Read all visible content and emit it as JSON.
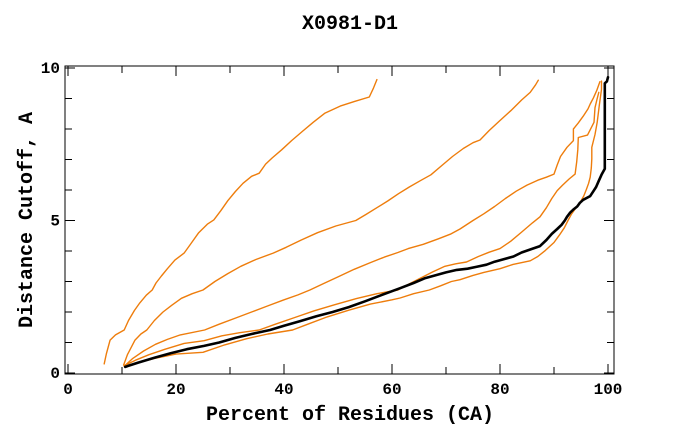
{
  "chart_data": {
    "type": "line",
    "title": "X0981-D1",
    "xlabel": "Percent of Residues (CA)",
    "ylabel": "Distance Cutoff, A",
    "xlim": [
      0,
      100
    ],
    "ylim": [
      0,
      10
    ],
    "x_tick_step": 10,
    "y_tick_step": 1,
    "x_ticks": [
      {
        "v": 0,
        "label": "0"
      },
      {
        "v": 20,
        "label": "20"
      },
      {
        "v": 40,
        "label": "40"
      },
      {
        "v": 60,
        "label": "60"
      },
      {
        "v": 80,
        "label": "80"
      },
      {
        "v": 100,
        "label": "100"
      }
    ],
    "y_ticks": [
      {
        "v": 0,
        "label": "0"
      },
      {
        "v": 5,
        "label": "5"
      },
      {
        "v": 10,
        "label": "10"
      }
    ],
    "grid": false,
    "legend": "none",
    "colors": {
      "model": "#ee7d0c",
      "reference": "#000000"
    },
    "series": [
      {
        "name": "model-1",
        "role": "model",
        "color": "#ee7d0c",
        "points": [
          [
            6.7,
            0.3
          ],
          [
            7.1,
            0.62
          ],
          [
            7.8,
            1.08
          ],
          [
            8.8,
            1.25
          ],
          [
            10.4,
            1.41
          ],
          [
            11.2,
            1.72
          ],
          [
            12.3,
            2.05
          ],
          [
            13.3,
            2.3
          ],
          [
            14.5,
            2.55
          ],
          [
            15.6,
            2.72
          ],
          [
            16.3,
            2.95
          ],
          [
            17.3,
            3.18
          ],
          [
            18.4,
            3.42
          ],
          [
            19.8,
            3.7
          ],
          [
            21.5,
            3.93
          ],
          [
            22.8,
            4.25
          ],
          [
            24.2,
            4.6
          ],
          [
            25.8,
            4.88
          ],
          [
            27.0,
            5.02
          ],
          [
            28.3,
            5.32
          ],
          [
            29.6,
            5.65
          ],
          [
            31.0,
            5.95
          ],
          [
            32.4,
            6.22
          ],
          [
            34.0,
            6.45
          ],
          [
            35.4,
            6.55
          ],
          [
            36.6,
            6.85
          ],
          [
            37.8,
            7.05
          ],
          [
            39.6,
            7.32
          ],
          [
            41.4,
            7.62
          ],
          [
            43.4,
            7.92
          ],
          [
            45.4,
            8.22
          ],
          [
            47.6,
            8.52
          ],
          [
            50.4,
            8.75
          ],
          [
            53.0,
            8.9
          ],
          [
            55.8,
            9.05
          ],
          [
            56.6,
            9.35
          ],
          [
            57.2,
            9.62
          ]
        ]
      },
      {
        "name": "model-2",
        "role": "model",
        "color": "#ee7d0c",
        "points": [
          [
            10.3,
            0.26
          ],
          [
            11.0,
            0.6
          ],
          [
            12.4,
            1.08
          ],
          [
            13.5,
            1.28
          ],
          [
            14.6,
            1.41
          ],
          [
            16.0,
            1.72
          ],
          [
            17.6,
            2.0
          ],
          [
            19.2,
            2.22
          ],
          [
            21.0,
            2.45
          ],
          [
            23.0,
            2.6
          ],
          [
            25.0,
            2.72
          ],
          [
            27.2,
            3.0
          ],
          [
            29.6,
            3.26
          ],
          [
            32.0,
            3.5
          ],
          [
            34.8,
            3.72
          ],
          [
            38.0,
            3.93
          ],
          [
            40.4,
            4.12
          ],
          [
            43.2,
            4.36
          ],
          [
            46.2,
            4.6
          ],
          [
            49.6,
            4.82
          ],
          [
            53.3,
            5.0
          ],
          [
            55.2,
            5.2
          ],
          [
            57.2,
            5.42
          ],
          [
            59.2,
            5.64
          ],
          [
            61.2,
            5.88
          ],
          [
            63.2,
            6.1
          ],
          [
            65.2,
            6.3
          ],
          [
            67.2,
            6.5
          ],
          [
            69.2,
            6.8
          ],
          [
            71.2,
            7.1
          ],
          [
            73.2,
            7.36
          ],
          [
            75.0,
            7.55
          ],
          [
            76.3,
            7.64
          ],
          [
            78.0,
            7.95
          ],
          [
            80.0,
            8.28
          ],
          [
            82.0,
            8.6
          ],
          [
            84.0,
            8.95
          ],
          [
            85.6,
            9.2
          ],
          [
            86.6,
            9.45
          ],
          [
            87.1,
            9.6
          ]
        ]
      },
      {
        "name": "model-3",
        "role": "model",
        "color": "#ee7d0c",
        "points": [
          [
            10.4,
            0.22
          ],
          [
            12.0,
            0.48
          ],
          [
            14.0,
            0.72
          ],
          [
            16.2,
            0.94
          ],
          [
            18.4,
            1.1
          ],
          [
            20.8,
            1.25
          ],
          [
            25.3,
            1.41
          ],
          [
            28.0,
            1.6
          ],
          [
            31.0,
            1.8
          ],
          [
            34.0,
            2.0
          ],
          [
            37.0,
            2.2
          ],
          [
            40.0,
            2.4
          ],
          [
            42.6,
            2.56
          ],
          [
            44.8,
            2.72
          ],
          [
            47.2,
            2.92
          ],
          [
            50.0,
            3.15
          ],
          [
            53.0,
            3.4
          ],
          [
            56.0,
            3.62
          ],
          [
            58.6,
            3.8
          ],
          [
            61.1,
            3.95
          ],
          [
            63.0,
            4.08
          ],
          [
            65.8,
            4.22
          ],
          [
            68.6,
            4.4
          ],
          [
            70.8,
            4.55
          ],
          [
            72.6,
            4.72
          ],
          [
            75.0,
            5.0
          ],
          [
            77.0,
            5.22
          ],
          [
            79.0,
            5.46
          ],
          [
            81.0,
            5.72
          ],
          [
            83.0,
            5.96
          ],
          [
            85.0,
            6.16
          ],
          [
            87.0,
            6.32
          ],
          [
            88.6,
            6.42
          ],
          [
            90.0,
            6.52
          ],
          [
            90.6,
            6.82
          ],
          [
            91.2,
            7.1
          ],
          [
            92.4,
            7.4
          ],
          [
            93.6,
            7.62
          ],
          [
            93.6,
            8.0
          ],
          [
            94.5,
            8.2
          ],
          [
            95.4,
            8.42
          ],
          [
            96.3,
            8.66
          ],
          [
            96.7,
            8.82
          ],
          [
            97.3,
            9.02
          ],
          [
            97.9,
            9.26
          ],
          [
            98.3,
            9.45
          ],
          [
            98.5,
            9.55
          ]
        ]
      },
      {
        "name": "model-4",
        "role": "model",
        "color": "#ee7d0c",
        "points": [
          [
            10.5,
            0.25
          ],
          [
            12.5,
            0.42
          ],
          [
            15.0,
            0.6
          ],
          [
            18.0,
            0.78
          ],
          [
            21.5,
            0.97
          ],
          [
            25.2,
            1.06
          ],
          [
            28.5,
            1.22
          ],
          [
            31.8,
            1.32
          ],
          [
            35.4,
            1.41
          ],
          [
            38.4,
            1.6
          ],
          [
            42.0,
            1.82
          ],
          [
            45.6,
            2.04
          ],
          [
            49.4,
            2.24
          ],
          [
            53.4,
            2.44
          ],
          [
            57.2,
            2.6
          ],
          [
            61.1,
            2.72
          ],
          [
            63.2,
            2.92
          ],
          [
            65.4,
            3.12
          ],
          [
            67.6,
            3.32
          ],
          [
            69.8,
            3.5
          ],
          [
            71.8,
            3.58
          ],
          [
            73.8,
            3.64
          ],
          [
            76.0,
            3.82
          ],
          [
            78.0,
            3.96
          ],
          [
            80.0,
            4.08
          ],
          [
            82.0,
            4.32
          ],
          [
            84.0,
            4.62
          ],
          [
            86.0,
            4.92
          ],
          [
            87.4,
            5.12
          ],
          [
            88.6,
            5.42
          ],
          [
            89.6,
            5.72
          ],
          [
            90.6,
            5.98
          ],
          [
            91.6,
            6.16
          ],
          [
            92.8,
            6.36
          ],
          [
            93.9,
            6.52
          ],
          [
            94.2,
            6.92
          ],
          [
            94.4,
            7.32
          ],
          [
            94.5,
            7.72
          ],
          [
            96.2,
            7.8
          ],
          [
            97.4,
            8.22
          ],
          [
            97.6,
            8.7
          ],
          [
            98.0,
            9.0
          ],
          [
            98.3,
            9.2
          ]
        ]
      },
      {
        "name": "model-5",
        "role": "model",
        "color": "#ee7d0c",
        "points": [
          [
            10.8,
            0.2
          ],
          [
            13.0,
            0.34
          ],
          [
            16.0,
            0.48
          ],
          [
            20.0,
            0.62
          ],
          [
            25.0,
            0.68
          ],
          [
            29.0,
            0.92
          ],
          [
            33.0,
            1.12
          ],
          [
            37.0,
            1.28
          ],
          [
            41.6,
            1.41
          ],
          [
            44.4,
            1.6
          ],
          [
            48.0,
            1.84
          ],
          [
            52.0,
            2.06
          ],
          [
            56.0,
            2.26
          ],
          [
            60.0,
            2.4
          ],
          [
            61.5,
            2.46
          ],
          [
            64.0,
            2.6
          ],
          [
            66.9,
            2.72
          ],
          [
            69.0,
            2.86
          ],
          [
            71.0,
            3.0
          ],
          [
            72.6,
            3.06
          ],
          [
            75.0,
            3.2
          ],
          [
            77.0,
            3.3
          ],
          [
            80.0,
            3.42
          ],
          [
            82.4,
            3.56
          ],
          [
            85.6,
            3.68
          ],
          [
            87.0,
            3.82
          ],
          [
            88.4,
            4.02
          ],
          [
            90.0,
            4.28
          ],
          [
            91.0,
            4.52
          ],
          [
            91.9,
            4.76
          ],
          [
            92.6,
            5.0
          ],
          [
            93.2,
            5.2
          ],
          [
            94.0,
            5.4
          ],
          [
            94.8,
            5.58
          ],
          [
            95.5,
            5.8
          ],
          [
            96.0,
            6.02
          ],
          [
            96.4,
            6.22
          ],
          [
            96.7,
            6.42
          ],
          [
            96.9,
            6.72
          ],
          [
            97.0,
            7.02
          ],
          [
            97.0,
            7.4
          ],
          [
            97.6,
            7.82
          ],
          [
            98.0,
            8.22
          ],
          [
            98.4,
            8.8
          ],
          [
            98.8,
            9.3
          ],
          [
            98.8,
            9.57
          ]
        ]
      },
      {
        "name": "reference",
        "role": "reference",
        "color": "#000000",
        "points": [
          [
            10.6,
            0.2
          ],
          [
            13.0,
            0.34
          ],
          [
            16.0,
            0.5
          ],
          [
            19.0,
            0.65
          ],
          [
            22.0,
            0.78
          ],
          [
            25.2,
            0.89
          ],
          [
            28.0,
            1.0
          ],
          [
            31.0,
            1.15
          ],
          [
            34.0,
            1.28
          ],
          [
            37.4,
            1.41
          ],
          [
            40.0,
            1.55
          ],
          [
            43.0,
            1.7
          ],
          [
            46.0,
            1.86
          ],
          [
            49.0,
            2.0
          ],
          [
            52.0,
            2.16
          ],
          [
            55.0,
            2.35
          ],
          [
            58.0,
            2.55
          ],
          [
            61.5,
            2.78
          ],
          [
            64.0,
            2.95
          ],
          [
            66.0,
            3.1
          ],
          [
            68.0,
            3.2
          ],
          [
            70.0,
            3.3
          ],
          [
            72.0,
            3.38
          ],
          [
            74.0,
            3.42
          ],
          [
            75.6,
            3.48
          ],
          [
            77.5,
            3.55
          ],
          [
            79.0,
            3.65
          ],
          [
            80.5,
            3.72
          ],
          [
            82.5,
            3.82
          ],
          [
            84.0,
            3.95
          ],
          [
            85.6,
            4.05
          ],
          [
            87.4,
            4.16
          ],
          [
            88.6,
            4.36
          ],
          [
            89.6,
            4.56
          ],
          [
            90.6,
            4.72
          ],
          [
            91.4,
            4.86
          ],
          [
            92.0,
            5.0
          ],
          [
            92.4,
            5.12
          ],
          [
            93.0,
            5.26
          ],
          [
            93.6,
            5.36
          ],
          [
            94.3,
            5.46
          ],
          [
            94.8,
            5.58
          ],
          [
            95.4,
            5.68
          ],
          [
            96.7,
            5.8
          ],
          [
            97.3,
            5.96
          ],
          [
            97.8,
            6.1
          ],
          [
            98.3,
            6.3
          ],
          [
            98.8,
            6.5
          ],
          [
            99.4,
            6.7
          ],
          [
            99.4,
            9.5
          ],
          [
            99.8,
            9.56
          ],
          [
            100.0,
            9.7
          ]
        ]
      }
    ]
  }
}
